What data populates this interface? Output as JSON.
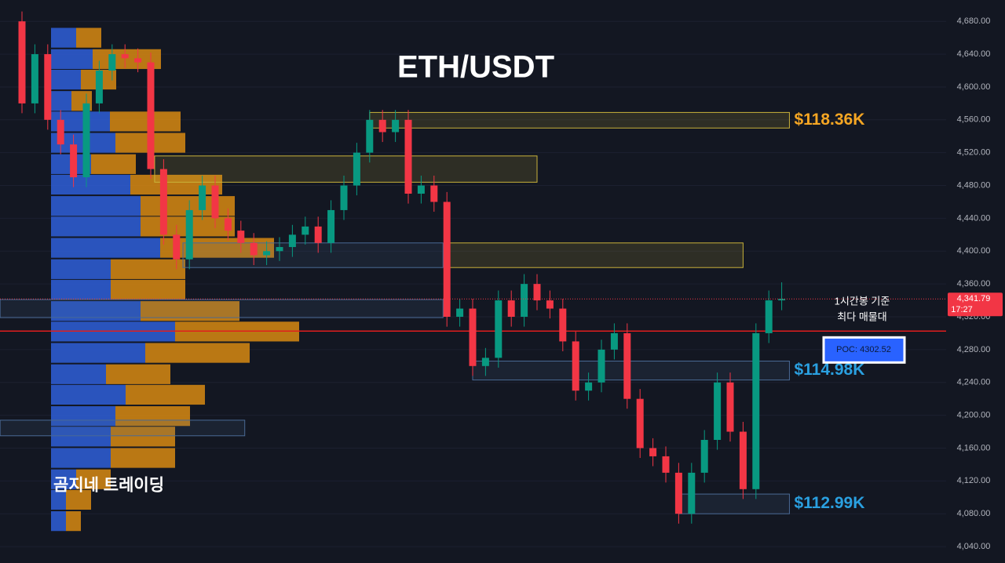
{
  "chart_data": {
    "type": "candlestick",
    "title": "ETH/USDT",
    "watermark": "곰지네 트레이딩",
    "annotation": [
      "1시간봉 기준",
      "최다 매물대"
    ],
    "up_color": "#089981",
    "down_color": "#f23645",
    "ylim": [
      4020,
      4706
    ],
    "yticks": [
      {
        "value": 4040,
        "label": "4,040.00"
      },
      {
        "value": 4080,
        "label": "4,080.00"
      },
      {
        "value": 4120,
        "label": "4,120.00"
      },
      {
        "value": 4160,
        "label": "4,160.00"
      },
      {
        "value": 4200,
        "label": "4,200.00"
      },
      {
        "value": 4240,
        "label": "4,240.00"
      },
      {
        "value": 4280,
        "label": "4,280.00"
      },
      {
        "value": 4320,
        "label": "4,320.00"
      },
      {
        "value": 4360,
        "label": "4,360.00"
      },
      {
        "value": 4400,
        "label": "4,400.00"
      },
      {
        "value": 4440,
        "label": "4,440.00"
      },
      {
        "value": 4480,
        "label": "4,480.00"
      },
      {
        "value": 4520,
        "label": "4,520.00"
      },
      {
        "value": 4560,
        "label": "4,560.00"
      },
      {
        "value": 4600,
        "label": "4,600.00"
      },
      {
        "value": 4640,
        "label": "4,640.00"
      },
      {
        "value": 4680,
        "label": "4,680.00"
      }
    ],
    "open": [
      4680,
      4580,
      4640,
      4560,
      4530,
      4490,
      4580,
      4620,
      4640,
      4635,
      4630,
      4500,
      4420,
      4390,
      4450,
      4480,
      4440,
      4425,
      4410,
      4395,
      4400,
      4405,
      4420,
      4430,
      4410,
      4450,
      4480,
      4520,
      4560,
      4545,
      4560,
      4470,
      4480,
      4460,
      4320,
      4330,
      4260,
      4270,
      4340,
      4320,
      4360,
      4340,
      4330,
      4290,
      4230,
      4240,
      4280,
      4300,
      4220,
      4160,
      4150,
      4130,
      4080,
      4130,
      4170,
      4240,
      4180,
      4110,
      4300,
      4340
    ],
    "high": [
      4692,
      4652,
      4652,
      4572,
      4542,
      4592,
      4632,
      4652,
      4652,
      4647,
      4642,
      4512,
      4432,
      4462,
      4492,
      4492,
      4452,
      4437,
      4422,
      4412,
      4417,
      4432,
      4442,
      4442,
      4462,
      4492,
      4532,
      4572,
      4572,
      4572,
      4572,
      4492,
      4492,
      4472,
      4342,
      4342,
      4282,
      4352,
      4352,
      4372,
      4372,
      4352,
      4342,
      4302,
      4252,
      4292,
      4312,
      4312,
      4232,
      4172,
      4162,
      4142,
      4142,
      4182,
      4252,
      4252,
      4192,
      4312,
      4352,
      4362
    ],
    "low": [
      4568,
      4568,
      4548,
      4518,
      4478,
      4478,
      4568,
      4608,
      4623,
      4618,
      4488,
      4408,
      4378,
      4378,
      4438,
      4428,
      4413,
      4398,
      4383,
      4383,
      4388,
      4393,
      4408,
      4398,
      4398,
      4438,
      4468,
      4508,
      4533,
      4533,
      4458,
      4458,
      4448,
      4308,
      4308,
      4248,
      4248,
      4258,
      4308,
      4308,
      4328,
      4318,
      4278,
      4218,
      4218,
      4228,
      4268,
      4208,
      4148,
      4138,
      4118,
      4068,
      4068,
      4118,
      4158,
      4168,
      4098,
      4098,
      4288,
      4328
    ],
    "close": [
      4580,
      4640,
      4560,
      4530,
      4490,
      4580,
      4620,
      4640,
      4635,
      4630,
      4500,
      4420,
      4390,
      4450,
      4480,
      4440,
      4425,
      4410,
      4395,
      4400,
      4405,
      4420,
      4430,
      4410,
      4450,
      4480,
      4520,
      4560,
      4545,
      4560,
      4470,
      4480,
      4460,
      4320,
      4330,
      4260,
      4270,
      4340,
      4320,
      4360,
      4340,
      4330,
      4290,
      4230,
      4240,
      4280,
      4300,
      4220,
      4160,
      4150,
      4130,
      4080,
      4130,
      4170,
      4240,
      4180,
      4110,
      4300,
      4340,
      4341.79
    ],
    "profile": {
      "levels": [
        4660,
        4634,
        4609,
        4583,
        4558,
        4532,
        4506,
        4481,
        4455,
        4430,
        4404,
        4378,
        4353,
        4327,
        4302,
        4276,
        4250,
        4225,
        4199,
        4174,
        4148,
        4122,
        4097,
        4071
      ],
      "buy": [
        32,
        53,
        38,
        26,
        75,
        82,
        51,
        101,
        114,
        114,
        139,
        76,
        76,
        114,
        158,
        120,
        70,
        95,
        82,
        76,
        76,
        32,
        19,
        19
      ],
      "sell": [
        32,
        87,
        45,
        26,
        90,
        89,
        57,
        117,
        120,
        120,
        145,
        95,
        95,
        126,
        158,
        133,
        82,
        101,
        95,
        82,
        82,
        44,
        32,
        19
      ],
      "buy_color": "#2f5fd8",
      "sell_color": "#d88a12"
    },
    "zones": [
      {
        "low": 4550,
        "high": 4569,
        "start": 27,
        "end": 59.6,
        "color": "#c9b23a",
        "label": "$118.36K",
        "label_color": "#f5a623"
      },
      {
        "low": 4484,
        "high": 4516,
        "start": 10.3,
        "end": 40,
        "color": "#c9b23a"
      },
      {
        "low": 4380,
        "high": 4410,
        "start": 12.5,
        "end": 32.7,
        "color": "#4a6a95"
      },
      {
        "low": 4380,
        "high": 4410,
        "start": 33,
        "end": 56,
        "color": "#c9b23a"
      },
      {
        "low": 4319,
        "high": 4341,
        "start": -1.7,
        "end": 32.7,
        "color": "#4a6a95"
      },
      {
        "low": 4243,
        "high": 4266,
        "start": 35,
        "end": 59.6,
        "color": "#4a6a95",
        "label": "$114.98K",
        "label_color": "#2aa0e0"
      },
      {
        "low": 4175,
        "high": 4194,
        "start": -1.7,
        "end": 17.3,
        "color": "#4a6a95"
      },
      {
        "low": 4080,
        "high": 4104,
        "start": 51,
        "end": 59.6,
        "color": "#4a6a95",
        "label": "$112.99K",
        "label_color": "#2aa0e0"
      }
    ],
    "poc": {
      "value": 4302.52,
      "label": "POC: 4302.52",
      "color": "#e01e1e"
    },
    "last_price": {
      "value": 4341.79,
      "label": "4,341.79",
      "timer": "17:27"
    }
  }
}
